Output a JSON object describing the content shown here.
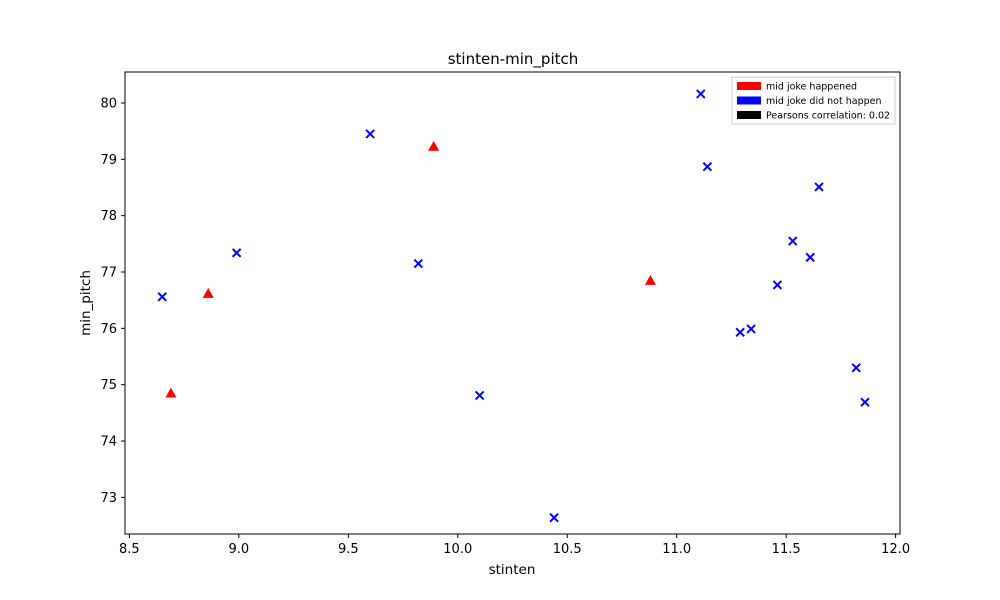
{
  "chart_data": {
    "type": "scatter",
    "title": "stinten-min_pitch",
    "xlabel": "stinten",
    "ylabel": "min_pitch",
    "xlim": [
      8.48,
      12.02
    ],
    "ylim": [
      72.35,
      80.55
    ],
    "xticks": [
      8.5,
      9.0,
      9.5,
      10.0,
      10.5,
      11.0,
      11.5,
      12.0
    ],
    "xtick_labels": [
      "8.5",
      "9.0",
      "9.5",
      "10.0",
      "10.5",
      "11.0",
      "11.5",
      "12.0"
    ],
    "yticks": [
      73,
      74,
      75,
      76,
      77,
      78,
      79,
      80
    ],
    "ytick_labels": [
      "73",
      "74",
      "75",
      "76",
      "77",
      "78",
      "79",
      "80"
    ],
    "grid": false,
    "legend_position": "top-right",
    "legend": [
      {
        "label": "mid joke happened",
        "color": "#ff0000"
      },
      {
        "label": "mid joke did not happen",
        "color": "#0000ff"
      },
      {
        "label": "Pearsons correlation: 0.02",
        "color": "#000000"
      }
    ],
    "series": [
      {
        "name": "mid joke happened",
        "marker": "triangle",
        "color": "#ff0000",
        "points": [
          {
            "x": 8.69,
            "y": 74.85
          },
          {
            "x": 8.86,
            "y": 76.62
          },
          {
            "x": 9.89,
            "y": 79.23
          },
          {
            "x": 10.88,
            "y": 76.85
          }
        ]
      },
      {
        "name": "mid joke did not happen",
        "marker": "x",
        "color": "#0000ff",
        "points": [
          {
            "x": 8.65,
            "y": 76.56
          },
          {
            "x": 8.99,
            "y": 77.34
          },
          {
            "x": 9.6,
            "y": 79.45
          },
          {
            "x": 9.82,
            "y": 77.15
          },
          {
            "x": 10.1,
            "y": 74.81
          },
          {
            "x": 10.44,
            "y": 72.64
          },
          {
            "x": 11.11,
            "y": 80.16
          },
          {
            "x": 11.14,
            "y": 78.87
          },
          {
            "x": 11.29,
            "y": 75.93
          },
          {
            "x": 11.34,
            "y": 75.99
          },
          {
            "x": 11.46,
            "y": 76.77
          },
          {
            "x": 11.53,
            "y": 77.55
          },
          {
            "x": 11.61,
            "y": 77.26
          },
          {
            "x": 11.65,
            "y": 78.51
          },
          {
            "x": 11.82,
            "y": 75.3
          },
          {
            "x": 11.86,
            "y": 74.69
          }
        ]
      }
    ]
  }
}
